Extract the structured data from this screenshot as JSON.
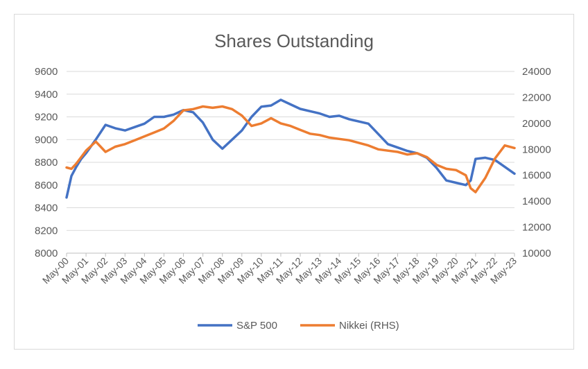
{
  "chart_data": {
    "type": "line",
    "title": "Shares Outstanding",
    "xlabel": "",
    "ylabel": "",
    "x_ticks": [
      "May-00",
      "May-01",
      "May-02",
      "May-03",
      "May-04",
      "May-05",
      "May-06",
      "May-07",
      "May-08",
      "May-09",
      "May-10",
      "May-11",
      "May-12",
      "May-13",
      "May-14",
      "May-15",
      "May-16",
      "May-17",
      "May-18",
      "May-19",
      "May-20",
      "May-21",
      "May-22",
      "May-23"
    ],
    "x": [
      2000.0,
      2000.25,
      2000.5,
      2000.75,
      2001.0,
      2001.5,
      2002.0,
      2002.5,
      2003.0,
      2003.5,
      2004.0,
      2004.5,
      2005.0,
      2005.5,
      2006.0,
      2006.5,
      2007.0,
      2007.5,
      2008.0,
      2008.5,
      2009.0,
      2009.5,
      2010.0,
      2010.5,
      2011.0,
      2011.5,
      2012.0,
      2012.5,
      2013.0,
      2013.5,
      2014.0,
      2014.5,
      2015.0,
      2015.5,
      2016.0,
      2016.5,
      2017.0,
      2017.5,
      2018.0,
      2018.5,
      2019.0,
      2019.5,
      2020.0,
      2020.5,
      2020.75,
      2021.0,
      2021.5,
      2022.0,
      2022.5,
      2023.0
    ],
    "series": [
      {
        "name": "S&P 500",
        "color": "#4472C4",
        "axis": "left",
        "values": [
          8490,
          8680,
          8760,
          8830,
          8880,
          9000,
          9130,
          9100,
          9080,
          9110,
          9140,
          9200,
          9200,
          9220,
          9260,
          9240,
          9150,
          9000,
          8920,
          9000,
          9080,
          9200,
          9290,
          9300,
          9350,
          9310,
          9270,
          9250,
          9230,
          9200,
          9210,
          9180,
          9160,
          9140,
          9050,
          8960,
          8930,
          8900,
          8880,
          8840,
          8750,
          8640,
          8620,
          8600,
          8640,
          8830,
          8840,
          8820,
          8760,
          8700
        ]
      },
      {
        "name": "Nikkei (RHS)",
        "color": "#ED7D31",
        "axis": "right",
        "values": [
          16600,
          16500,
          16900,
          17400,
          17900,
          18600,
          17800,
          18200,
          18400,
          18700,
          19000,
          19300,
          19600,
          20200,
          21000,
          21100,
          21300,
          21200,
          21300,
          21100,
          20600,
          19800,
          20000,
          20400,
          20000,
          19800,
          19500,
          19200,
          19100,
          18900,
          18800,
          18700,
          18500,
          18300,
          18000,
          17900,
          17800,
          17600,
          17700,
          17400,
          16800,
          16500,
          16400,
          16000,
          15000,
          14700,
          15800,
          17300,
          18300,
          18100
        ]
      }
    ],
    "ylim_left": [
      8000,
      9600
    ],
    "ylim_right": [
      10000,
      24000
    ],
    "y_ticks_left": [
      "8000",
      "8200",
      "8400",
      "8600",
      "8800",
      "9000",
      "9200",
      "9400",
      "9600"
    ],
    "y_ticks_right": [
      "10000",
      "12000",
      "14000",
      "16000",
      "18000",
      "20000",
      "22000",
      "24000"
    ],
    "grid": "horizontal",
    "legend_position": "bottom"
  }
}
